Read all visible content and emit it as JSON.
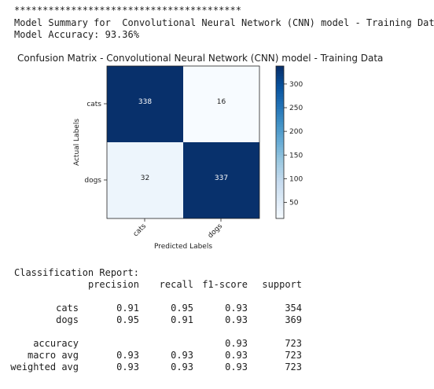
{
  "output": {
    "separator": "****************************************",
    "summary_line": "Model Summary for  Convolutional Neural Network (CNN) model - Training Data",
    "accuracy_line": "Model Accuracy: 93.36%"
  },
  "chart_data": {
    "type": "heatmap",
    "title": "Confusion Matrix - Convolutional Neural Network (CNN) model - Training Data",
    "xlabel": "Predicted Labels",
    "ylabel": "Actual Labels",
    "x_categories": [
      "cats",
      "dogs"
    ],
    "y_categories": [
      "cats",
      "dogs"
    ],
    "values": [
      [
        338,
        16
      ],
      [
        32,
        337
      ]
    ],
    "colormap": "Blues",
    "colorbar": {
      "min": 16,
      "max": 338,
      "ticks": [
        50,
        100,
        150,
        200,
        250,
        300
      ]
    },
    "colors": {
      "low": "#f7fbff",
      "high": "#08306b"
    }
  },
  "report": {
    "title": "Classification Report:",
    "headers": [
      "precision",
      "recall",
      "f1-score",
      "support"
    ],
    "rows": [
      {
        "label": "cats",
        "precision": "0.91",
        "recall": "0.95",
        "f1": "0.93",
        "support": "354"
      },
      {
        "label": "dogs",
        "precision": "0.95",
        "recall": "0.91",
        "f1": "0.93",
        "support": "369"
      }
    ],
    "summary_rows": [
      {
        "label": "accuracy",
        "precision": "",
        "recall": "",
        "f1": "0.93",
        "support": "723"
      },
      {
        "label": "macro avg",
        "precision": "0.93",
        "recall": "0.93",
        "f1": "0.93",
        "support": "723"
      },
      {
        "label": "weighted avg",
        "precision": "0.93",
        "recall": "0.93",
        "f1": "0.93",
        "support": "723"
      }
    ]
  }
}
